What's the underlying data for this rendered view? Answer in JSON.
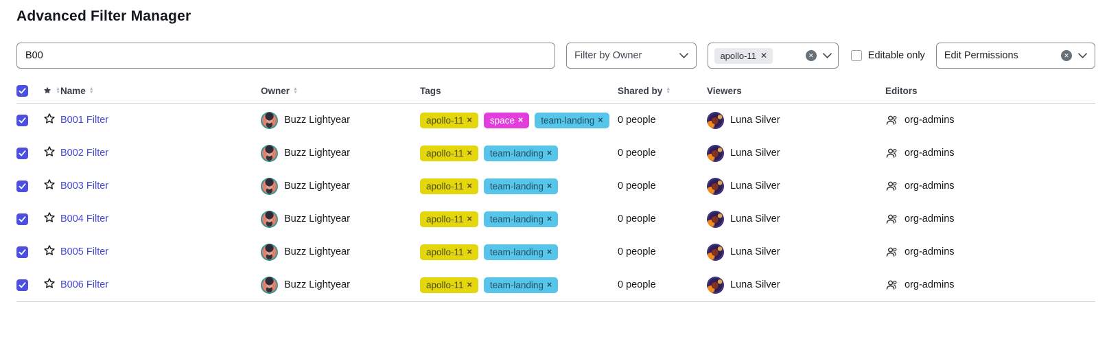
{
  "title": "Advanced Filter Manager",
  "colors": {
    "accent": "#4b4fe2",
    "link": "#4347d8",
    "chip_bg": "#e8e9ec"
  },
  "toolbar": {
    "search": {
      "value": "B00"
    },
    "owner_filter": {
      "placeholder": "Filter by Owner"
    },
    "tag_filter": {
      "selected": [
        {
          "label": "apollo-11"
        }
      ]
    },
    "editable_only": {
      "label": "Editable only",
      "checked": false
    },
    "permissions_filter": {
      "value": "Edit Permissions"
    }
  },
  "table": {
    "header": {
      "name": "Name",
      "owner": "Owner",
      "tags": "Tags",
      "shared_by": "Shared by",
      "viewers": "Viewers",
      "editors": "Editors",
      "select_all_checked": true
    },
    "tag_styles": {
      "apollo-11": {
        "bg": "#e4d60d",
        "fg": "#4c4a0d"
      },
      "space": {
        "bg": "#e23edd",
        "fg": "#ffffff"
      },
      "team-landing": {
        "bg": "#57c5e9",
        "fg": "#1d4f60"
      }
    },
    "rows": [
      {
        "checked": true,
        "starred": false,
        "name": "B001 Filter",
        "owner": "Buzz Lightyear",
        "tags": [
          "apollo-11",
          "space",
          "team-landing"
        ],
        "shared_by": "0 people",
        "viewer": "Luna Silver",
        "editors": "org-admins"
      },
      {
        "checked": true,
        "starred": false,
        "name": "B002 Filter",
        "owner": "Buzz Lightyear",
        "tags": [
          "apollo-11",
          "team-landing"
        ],
        "shared_by": "0 people",
        "viewer": "Luna Silver",
        "editors": "org-admins"
      },
      {
        "checked": true,
        "starred": false,
        "name": "B003 Filter",
        "owner": "Buzz Lightyear",
        "tags": [
          "apollo-11",
          "team-landing"
        ],
        "shared_by": "0 people",
        "viewer": "Luna Silver",
        "editors": "org-admins"
      },
      {
        "checked": true,
        "starred": false,
        "name": "B004 Filter",
        "owner": "Buzz Lightyear",
        "tags": [
          "apollo-11",
          "team-landing"
        ],
        "shared_by": "0 people",
        "viewer": "Luna Silver",
        "editors": "org-admins"
      },
      {
        "checked": true,
        "starred": false,
        "name": "B005 Filter",
        "owner": "Buzz Lightyear",
        "tags": [
          "apollo-11",
          "team-landing"
        ],
        "shared_by": "0 people",
        "viewer": "Luna Silver",
        "editors": "org-admins"
      },
      {
        "checked": true,
        "starred": false,
        "name": "B006 Filter",
        "owner": "Buzz Lightyear",
        "tags": [
          "apollo-11",
          "team-landing"
        ],
        "shared_by": "0 people",
        "viewer": "Luna Silver",
        "editors": "org-admins"
      }
    ]
  }
}
